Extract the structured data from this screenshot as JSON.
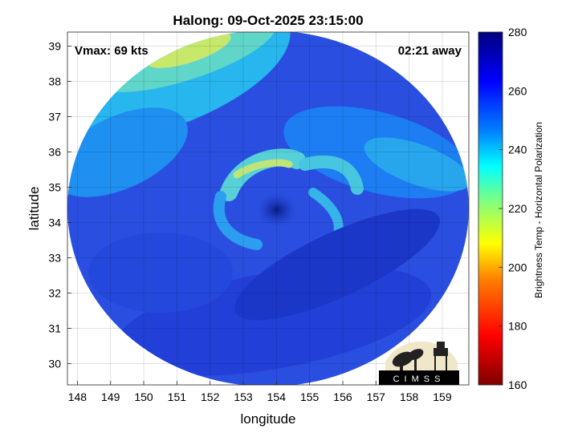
{
  "chart_data": {
    "type": "heatmap",
    "title": "Halong: 09-Oct-2025 23:15:00",
    "xlabel": "longitude",
    "ylabel": "latitude",
    "xlim": [
      147.7,
      159.8
    ],
    "ylim": [
      29.4,
      39.4
    ],
    "x_ticks": [
      "148",
      "149",
      "150",
      "151",
      "152",
      "153",
      "154",
      "155",
      "156",
      "157",
      "158",
      "159"
    ],
    "y_ticks": [
      "30",
      "31",
      "32",
      "33",
      "34",
      "35",
      "36",
      "37",
      "38",
      "39"
    ],
    "grid": true,
    "annotations": {
      "vmax": "Vmax: 69 kts",
      "away": "02:21 away"
    },
    "storm_center": {
      "lon": 153.9,
      "lat": 34.6
    },
    "colorbar": {
      "label": "Brightness Temp - Horizontal Polarization",
      "range": [
        160,
        280
      ],
      "ticks": [
        "160",
        "180",
        "200",
        "220",
        "240",
        "260",
        "280"
      ],
      "colors": [
        "#800000",
        "#ff0000",
        "#ff8000",
        "#ffff00",
        "#80ff80",
        "#00ffff",
        "#0080ff",
        "#0000ff",
        "#000080"
      ]
    },
    "logo": "CIMSS"
  }
}
